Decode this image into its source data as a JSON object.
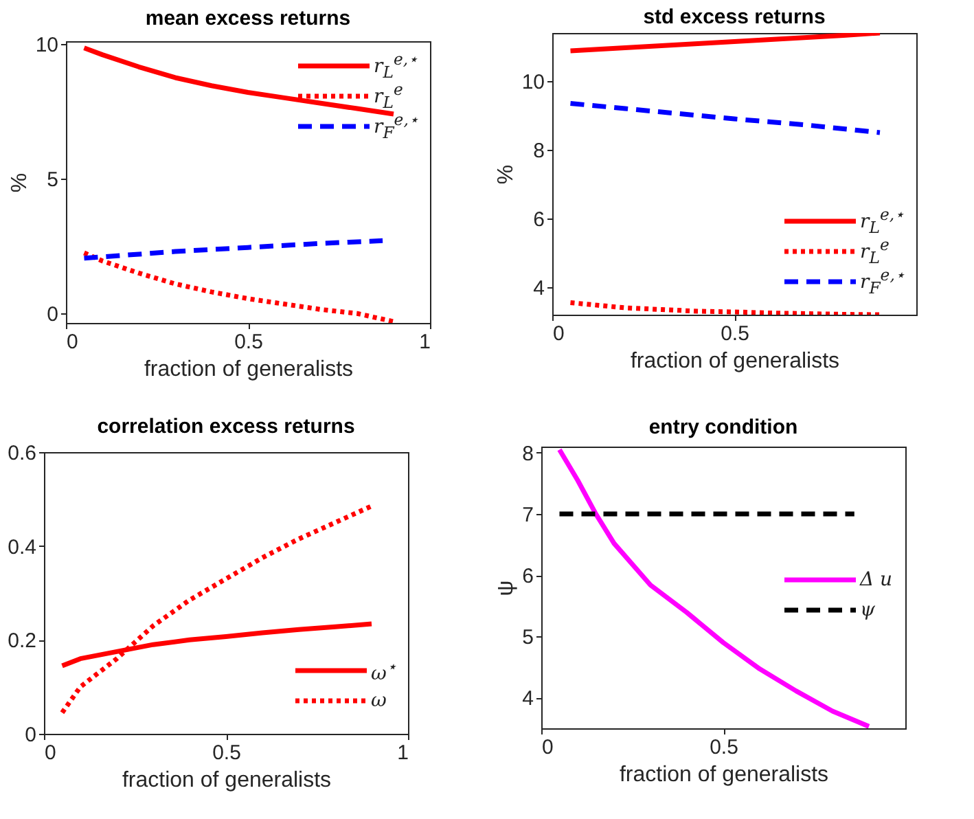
{
  "chart_data": [
    {
      "type": "line",
      "title": "mean excess returns",
      "xlabel": "fraction of generalists",
      "ylabel": "%",
      "x": [
        0.05,
        0.1,
        0.2,
        0.3,
        0.4,
        0.5,
        0.6,
        0.7,
        0.8,
        0.9
      ],
      "xlim": [
        0,
        1
      ],
      "xticks": [
        0,
        0.5,
        1
      ],
      "ylim": [
        -0.35,
        10.1
      ],
      "yticks": [
        0,
        5,
        10
      ],
      "legend": "top right",
      "series": [
        {
          "name": "r$_{L}$$^{e,⋆}$",
          "color": "#ff0000",
          "line_style": "solid",
          "values": [
            9.85,
            9.6,
            9.15,
            8.75,
            8.45,
            8.2,
            8.0,
            7.8,
            7.6,
            7.4
          ]
        },
        {
          "name": "r$_{L}$$^{e}$",
          "color": "#ff0000",
          "line_style": "dotted",
          "values": [
            2.25,
            1.95,
            1.5,
            1.1,
            0.8,
            0.55,
            0.35,
            0.15,
            0.0,
            -0.3
          ]
        },
        {
          "name": "r$_{F}$$^{e,⋆}$",
          "color": "#0000ff",
          "line_style": "dashed",
          "x": [
            0.05,
            0.3,
            0.5,
            0.7,
            0.87
          ],
          "values": [
            2.05,
            2.3,
            2.45,
            2.6,
            2.7
          ]
        }
      ]
    },
    {
      "type": "line",
      "title": "std excess returns",
      "xlabel": "fraction of generalists",
      "ylabel": "%",
      "x": [
        0.05,
        0.2,
        0.3,
        0.4,
        0.5,
        0.6,
        0.7,
        0.8,
        0.9
      ],
      "xlim": [
        0,
        1
      ],
      "xticks": [
        0,
        0.5
      ],
      "ylim": [
        3.2,
        11.4
      ],
      "yticks": [
        4,
        6,
        8,
        10
      ],
      "legend": "bottom right",
      "series": [
        {
          "name": "r$_{L}$$^{e,⋆}$",
          "color": "#ff0000",
          "line_style": "solid",
          "values": [
            10.88,
            10.97,
            11.03,
            11.09,
            11.15,
            11.21,
            11.27,
            11.33,
            11.4
          ]
        },
        {
          "name": "r$_{L}$$^{e}$",
          "color": "#ff0000",
          "line_style": "dotted",
          "values": [
            3.55,
            3.4,
            3.35,
            3.3,
            3.28,
            3.25,
            3.23,
            3.21,
            3.2
          ]
        },
        {
          "name": "r$_{F}$$^{e,⋆}$",
          "color": "#0000ff",
          "line_style": "dashed",
          "values": [
            9.35,
            9.2,
            9.1,
            9.0,
            8.9,
            8.81,
            8.72,
            8.61,
            8.5
          ]
        }
      ]
    },
    {
      "type": "line",
      "title": "correlation excess returns",
      "xlabel": "fraction of generalists",
      "x": [
        0.05,
        0.1,
        0.2,
        0.3,
        0.4,
        0.5,
        0.6,
        0.7,
        0.8,
        0.9
      ],
      "xlim": [
        0,
        1
      ],
      "xticks": [
        0,
        0.5,
        1
      ],
      "ylim": [
        0,
        0.6
      ],
      "yticks": [
        0,
        0.2,
        0.4,
        0.6
      ],
      "legend": "bottom right",
      "series": [
        {
          "name": "ω$^{⋆}$",
          "color": "#ff0000",
          "line_style": "solid",
          "values": [
            0.145,
            0.16,
            0.175,
            0.19,
            0.2,
            0.207,
            0.215,
            0.222,
            0.228,
            0.234
          ]
        },
        {
          "name": "ω",
          "color": "#ff0000",
          "line_style": "dotted",
          "values": [
            0.045,
            0.1,
            0.16,
            0.23,
            0.285,
            0.33,
            0.375,
            0.415,
            0.45,
            0.485
          ]
        }
      ]
    },
    {
      "type": "line",
      "title": "entry condition",
      "xlabel": "fraction of generalists",
      "ylabel": "ψ",
      "x": [
        0.05,
        0.1,
        0.15,
        0.2,
        0.3,
        0.4,
        0.5,
        0.6,
        0.7,
        0.8,
        0.9
      ],
      "xlim": [
        0,
        1
      ],
      "xticks": [
        0,
        0.5
      ],
      "ylim": [
        3.5,
        8.1
      ],
      "yticks": [
        4,
        5,
        6,
        7,
        8
      ],
      "legend": "right",
      "series": [
        {
          "name": "Δ u",
          "color": "#ff00ff",
          "line_style": "solid",
          "values": [
            8.05,
            7.55,
            7.0,
            6.52,
            5.84,
            5.39,
            4.9,
            4.47,
            4.11,
            3.78,
            3.53
          ]
        },
        {
          "name": "ψ",
          "color": "#000000",
          "line_style": "dashed",
          "x": [
            0.05,
            0.86
          ],
          "values": [
            7,
            7
          ]
        }
      ]
    }
  ]
}
